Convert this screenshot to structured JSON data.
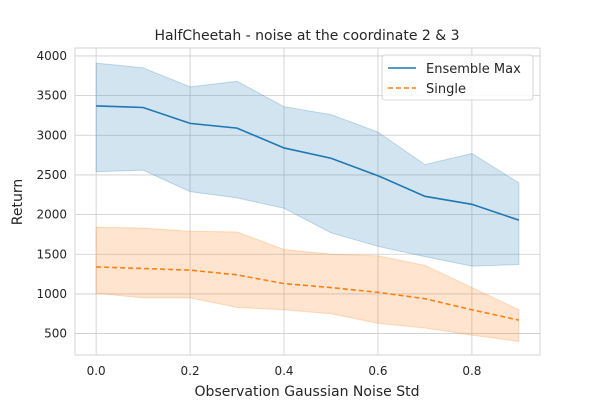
{
  "chart_data": {
    "type": "line",
    "title": "HalfCheetah - noise at the coordinate 2 & 3",
    "xlabel": "Observation Gaussian Noise Std",
    "ylabel": "Return",
    "xlim": [
      -0.045,
      0.945
    ],
    "ylim": [
      230,
      4100
    ],
    "xticks": [
      0.0,
      0.2,
      0.4,
      0.6,
      0.8
    ],
    "xtick_labels": [
      "0.0",
      "0.2",
      "0.4",
      "0.6",
      "0.8"
    ],
    "yticks": [
      500,
      1000,
      1500,
      2000,
      2500,
      3000,
      3500,
      4000
    ],
    "ytick_labels": [
      "500",
      "1000",
      "1500",
      "2000",
      "2500",
      "3000",
      "3500",
      "4000"
    ],
    "grid": true,
    "legend_position": "top-right",
    "x": [
      0.0,
      0.1,
      0.2,
      0.3,
      0.4,
      0.5,
      0.6,
      0.7,
      0.8,
      0.9
    ],
    "series": [
      {
        "name": "Ensemble Max",
        "color": "#1f77b4",
        "line_style": "solid",
        "values": [
          3370,
          3350,
          3150,
          3090,
          2840,
          2710,
          2490,
          2230,
          2130,
          1930
        ],
        "upper": [
          3910,
          3850,
          3610,
          3680,
          3360,
          3260,
          3040,
          2630,
          2770,
          2400
        ],
        "lower": [
          2540,
          2560,
          2290,
          2210,
          2080,
          1770,
          1600,
          1470,
          1350,
          1370
        ]
      },
      {
        "name": "Single",
        "color": "#ff7f0e",
        "line_style": "dashed",
        "values": [
          1340,
          1320,
          1300,
          1240,
          1130,
          1080,
          1020,
          940,
          800,
          670
        ],
        "upper": [
          1840,
          1830,
          1790,
          1780,
          1560,
          1500,
          1480,
          1360,
          1080,
          800
        ],
        "lower": [
          1010,
          950,
          950,
          830,
          800,
          750,
          630,
          570,
          480,
          400
        ]
      }
    ]
  }
}
